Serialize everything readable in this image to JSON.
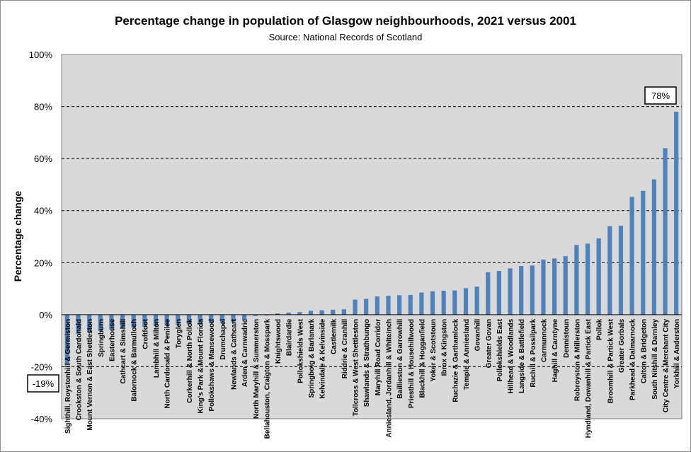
{
  "chart_data": {
    "type": "bar",
    "title": "Percentage change in population of Glasgow neighbourhoods, 2021 versus 2001",
    "subtitle": "Source: National Records of Scotland",
    "ylabel": "Percentage change",
    "xlabel": "",
    "ylim": [
      -40,
      100
    ],
    "ytick_labels": [
      "-40%",
      "-20%",
      "0%",
      "20%",
      "40%",
      "60%",
      "80%",
      "100%"
    ],
    "ytick_values": [
      -40,
      -20,
      0,
      20,
      40,
      60,
      80,
      100
    ],
    "grid": "horizontal dashed",
    "bar_color": "#4f81bd",
    "plot_background": "#d9d9d9",
    "annotations": [
      {
        "text": "78%",
        "category": "Yorkhill & Anderston",
        "value": 78
      },
      {
        "text": "-19%",
        "category": "Sighthill, Roystonhill & Germiston",
        "value": -19
      }
    ],
    "categories": [
      "Sighthill, Roystonhill & Germiston",
      "Crookston & South Cardonald",
      "Mount Vernon & East Shettleston",
      "Springburn",
      "Easterhouse",
      "Cathcart & Simshill",
      "Balornock & Barmulloch",
      "Croftfoot",
      "Lambhill & Milton",
      "North Cardonald & Penilee",
      "Toryglen",
      "Corkerhill & North Pollok",
      "King's Park & Mount Florida",
      "Pollokshaws & Mansewood",
      "Drumchapel",
      "Newlands & Cathcart",
      "Arden & Carnwadric",
      "North Maryhill & Summerston",
      "Bellahouston, Craigton & Mosspark",
      "Knightswood",
      "Blairdardie",
      "Pollokshields West",
      "Springboig & Barlanark",
      "Kelvindale & Kelvinside",
      "Castlemilk",
      "Riddrie & Cranhill",
      "Tollcross & West Shettleston",
      "Shawlands & Strathbungo",
      "Maryhill Road Corridor",
      "Anniesland, Jordanhill & Whiteinch",
      "Baillieston & Garrowhill",
      "Priesthill & Househillwood",
      "Blackhill & Hogganfield",
      "Yoker & Scotstoun",
      "Ibrox & Kingston",
      "Ruchazie & Garthamlock",
      "Temple & Anniesland",
      "Govanhill",
      "Greater Govan",
      "Pollokshields East",
      "Hillhead & Woodlands",
      "Langside & Battlefield",
      "Ruchill & Possilpark",
      "Carmunnock",
      "Haghill & Carntyne",
      "Dennistoun",
      "Robroyston & Millerston",
      "Hyndland, Dowanhill & Partick East",
      "Pollok",
      "Broomhill & Partick West",
      "Greater Gorbals",
      "Parkhead & Dalmarnock",
      "Calton & Bridgeton",
      "South Nitshill & Darnley",
      "City Centre & Merchant City",
      "Yorkhill & Anderston"
    ],
    "values": [
      -19,
      -7.5,
      -6.8,
      -6.3,
      -5.8,
      -5.3,
      -5.0,
      -4.7,
      -4.4,
      -4.1,
      -3.9,
      -3.7,
      -3.5,
      -3.3,
      -3.1,
      -2.9,
      -2.3,
      -0.5,
      -0.3,
      0.5,
      0.8,
      1.0,
      1.5,
      1.7,
      1.9,
      2.1,
      5.8,
      6.1,
      7.0,
      7.3,
      7.5,
      7.6,
      8.5,
      9.0,
      9.2,
      9.3,
      10.2,
      10.8,
      16.3,
      16.8,
      17.8,
      18.7,
      18.9,
      21.2,
      21.6,
      22.5,
      26.8,
      27.3,
      29.3,
      34.0,
      34.2,
      45.3,
      47.6,
      52.0,
      64.0,
      78.0
    ]
  }
}
